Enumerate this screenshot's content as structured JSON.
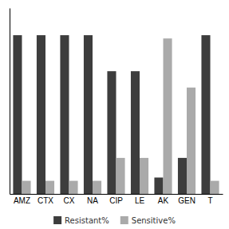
{
  "chart_data": {
    "type": "bar",
    "categories": [
      "AMZ",
      "CTX",
      "CX",
      "NA",
      "CIP",
      "LE",
      "AK",
      "GEN",
      "T"
    ],
    "series": [
      {
        "name": "Resistant%",
        "color": "#3d3d3d",
        "values": [
          97,
          97,
          97,
          97,
          75,
          75,
          10,
          22,
          97
        ]
      },
      {
        "name": "Sensitive%",
        "color": "#aaaaaa",
        "values": [
          8,
          8,
          8,
          8,
          22,
          22,
          95,
          65,
          8
        ]
      }
    ],
    "ylim": [
      0,
      113.63636363636364
    ],
    "yticks": [],
    "grid": false,
    "legend": "bottom",
    "tick_labels": "x"
  }
}
